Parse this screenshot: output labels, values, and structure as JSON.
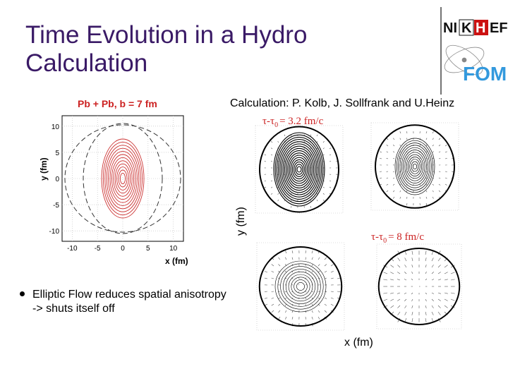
{
  "slide": {
    "title_line1": "Time Evolution in a Hydro",
    "title_line2": "Calculation",
    "credit": "Calculation: P. Kolb, J. Sollfrank and U.Heinz",
    "bullet": "Elliptic Flow reduces spatial anisotropy -> shuts itself off"
  },
  "logo": {
    "text_left": "NI",
    "text_mid": "K",
    "text_h": "H",
    "text_right": "EF",
    "fom": "FOM",
    "accent": "#cc1111",
    "fom_color": "#3399dd"
  },
  "left_plot": {
    "title": "Pb + Pb, b = 7 fm",
    "xlabel": "x (fm)",
    "ylabel": "y (fm)",
    "x_ticks": [
      "-10",
      "-5",
      "0",
      "5",
      "10"
    ],
    "y_ticks": [
      "10",
      "5",
      "0",
      "-5",
      "-10"
    ],
    "contour_color": "#cc3333",
    "title_color": "#cc2222"
  },
  "right_plot": {
    "xlabel": "x (fm)",
    "ylabel": "y (fm)",
    "label_top": "τ-τ",
    "label_top_sub": "0",
    "label_top_value": "= 3.2 fm/c",
    "label_bottom": "τ-τ",
    "label_bottom_sub": "0",
    "label_bottom_value": "= 8 fm/c",
    "label_color": "#cc2222"
  }
}
